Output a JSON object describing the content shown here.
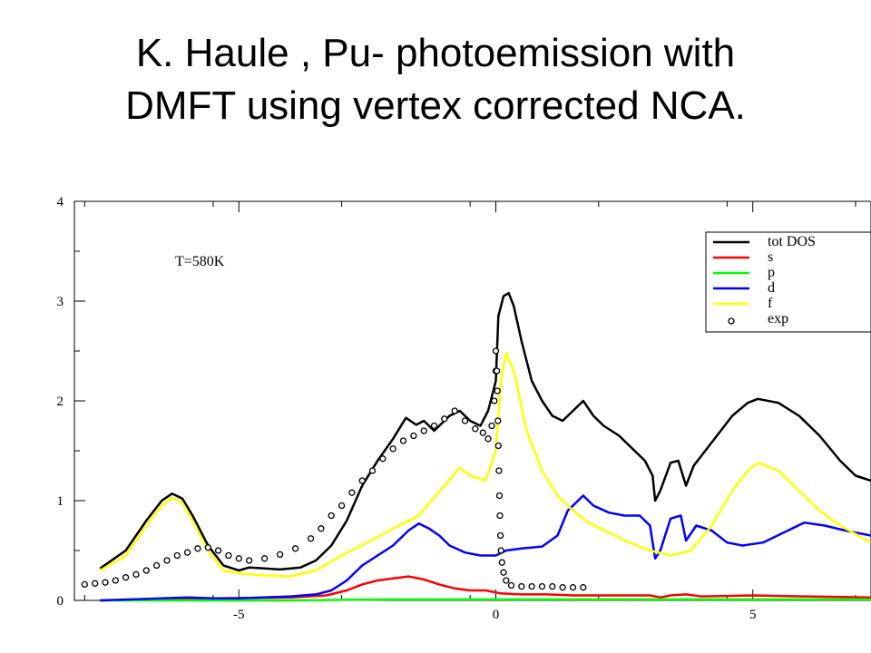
{
  "slide": {
    "title_line1": "K. Haule , Pu- photoemission with",
    "title_line2": "DMFT using vertex corrected NCA."
  },
  "chart_data": {
    "type": "line",
    "title": "",
    "xlabel": "",
    "ylabel": "",
    "xlim": [
      -8.2,
      7.3
    ],
    "ylim": [
      0,
      4
    ],
    "x_ticks": [
      -5,
      0,
      5
    ],
    "y_ticks": [
      0,
      1,
      2,
      3,
      4
    ],
    "grid": false,
    "legend_position": "top-right",
    "annotation": "T=580K",
    "series": [
      {
        "name": "tot DOS",
        "color": "#000000",
        "style": "line",
        "points": [
          [
            -7.7,
            0.32
          ],
          [
            -7.2,
            0.5
          ],
          [
            -6.8,
            0.8
          ],
          [
            -6.5,
            1.0
          ],
          [
            -6.3,
            1.07
          ],
          [
            -6.1,
            1.02
          ],
          [
            -5.9,
            0.85
          ],
          [
            -5.6,
            0.55
          ],
          [
            -5.3,
            0.35
          ],
          [
            -5.0,
            0.3
          ],
          [
            -4.8,
            0.33
          ],
          [
            -4.5,
            0.32
          ],
          [
            -4.2,
            0.31
          ],
          [
            -3.8,
            0.33
          ],
          [
            -3.5,
            0.4
          ],
          [
            -3.2,
            0.55
          ],
          [
            -2.9,
            0.8
          ],
          [
            -2.6,
            1.15
          ],
          [
            -2.3,
            1.4
          ],
          [
            -2.0,
            1.62
          ],
          [
            -1.75,
            1.83
          ],
          [
            -1.55,
            1.76
          ],
          [
            -1.4,
            1.8
          ],
          [
            -1.2,
            1.7
          ],
          [
            -0.9,
            1.85
          ],
          [
            -0.7,
            1.9
          ],
          [
            -0.5,
            1.8
          ],
          [
            -0.3,
            1.75
          ],
          [
            -0.15,
            1.9
          ],
          [
            0.0,
            2.2
          ],
          [
            0.05,
            2.85
          ],
          [
            0.15,
            3.05
          ],
          [
            0.25,
            3.08
          ],
          [
            0.35,
            2.95
          ],
          [
            0.5,
            2.6
          ],
          [
            0.7,
            2.2
          ],
          [
            0.9,
            2.0
          ],
          [
            1.1,
            1.85
          ],
          [
            1.3,
            1.8
          ],
          [
            1.5,
            1.9
          ],
          [
            1.7,
            2.0
          ],
          [
            1.9,
            1.85
          ],
          [
            2.1,
            1.75
          ],
          [
            2.4,
            1.65
          ],
          [
            2.7,
            1.5
          ],
          [
            2.9,
            1.4
          ],
          [
            3.05,
            1.25
          ],
          [
            3.1,
            1.0
          ],
          [
            3.2,
            1.1
          ],
          [
            3.4,
            1.38
          ],
          [
            3.55,
            1.4
          ],
          [
            3.7,
            1.15
          ],
          [
            3.85,
            1.35
          ],
          [
            4.0,
            1.45
          ],
          [
            4.3,
            1.65
          ],
          [
            4.6,
            1.85
          ],
          [
            4.9,
            1.98
          ],
          [
            5.1,
            2.02
          ],
          [
            5.5,
            1.98
          ],
          [
            5.9,
            1.85
          ],
          [
            6.3,
            1.65
          ],
          [
            6.7,
            1.4
          ],
          [
            7.0,
            1.25
          ],
          [
            7.3,
            1.2
          ]
        ]
      },
      {
        "name": "s",
        "color": "#ff0000",
        "style": "line",
        "points": [
          [
            -7.7,
            0.0
          ],
          [
            -6.5,
            0.01
          ],
          [
            -5.5,
            0.02
          ],
          [
            -4.0,
            0.03
          ],
          [
            -3.3,
            0.05
          ],
          [
            -2.9,
            0.1
          ],
          [
            -2.6,
            0.16
          ],
          [
            -2.3,
            0.2
          ],
          [
            -2.0,
            0.22
          ],
          [
            -1.7,
            0.24
          ],
          [
            -1.4,
            0.21
          ],
          [
            -1.1,
            0.16
          ],
          [
            -0.8,
            0.12
          ],
          [
            -0.5,
            0.1
          ],
          [
            -0.2,
            0.1
          ],
          [
            0.1,
            0.07
          ],
          [
            0.5,
            0.06
          ],
          [
            1.0,
            0.06
          ],
          [
            1.5,
            0.05
          ],
          [
            2.0,
            0.05
          ],
          [
            2.5,
            0.05
          ],
          [
            3.0,
            0.05
          ],
          [
            3.2,
            0.03
          ],
          [
            3.4,
            0.05
          ],
          [
            3.7,
            0.06
          ],
          [
            4.0,
            0.04
          ],
          [
            5.0,
            0.05
          ],
          [
            6.0,
            0.04
          ],
          [
            7.3,
            0.03
          ]
        ]
      },
      {
        "name": "p",
        "color": "#00ff00",
        "style": "line",
        "points": [
          [
            -7.7,
            0.0
          ],
          [
            -4.0,
            0.0
          ],
          [
            -2.0,
            0.01
          ],
          [
            0.0,
            0.01
          ],
          [
            2.0,
            0.01
          ],
          [
            5.0,
            0.01
          ],
          [
            7.3,
            0.01
          ]
        ]
      },
      {
        "name": "d",
        "color": "#0000ff",
        "style": "line",
        "points": [
          [
            -7.7,
            0.0
          ],
          [
            -6.5,
            0.02
          ],
          [
            -6.0,
            0.03
          ],
          [
            -5.5,
            0.02
          ],
          [
            -5.0,
            0.02
          ],
          [
            -4.0,
            0.04
          ],
          [
            -3.5,
            0.06
          ],
          [
            -3.2,
            0.1
          ],
          [
            -2.9,
            0.2
          ],
          [
            -2.6,
            0.35
          ],
          [
            -2.3,
            0.45
          ],
          [
            -2.0,
            0.55
          ],
          [
            -1.7,
            0.7
          ],
          [
            -1.5,
            0.77
          ],
          [
            -1.3,
            0.72
          ],
          [
            -1.1,
            0.65
          ],
          [
            -0.9,
            0.55
          ],
          [
            -0.6,
            0.48
          ],
          [
            -0.3,
            0.45
          ],
          [
            0.0,
            0.45
          ],
          [
            0.2,
            0.5
          ],
          [
            0.5,
            0.52
          ],
          [
            0.9,
            0.54
          ],
          [
            1.2,
            0.65
          ],
          [
            1.4,
            0.9
          ],
          [
            1.6,
            1.0
          ],
          [
            1.7,
            1.05
          ],
          [
            1.9,
            0.95
          ],
          [
            2.2,
            0.88
          ],
          [
            2.5,
            0.85
          ],
          [
            2.8,
            0.85
          ],
          [
            3.0,
            0.75
          ],
          [
            3.1,
            0.42
          ],
          [
            3.2,
            0.5
          ],
          [
            3.4,
            0.82
          ],
          [
            3.6,
            0.85
          ],
          [
            3.7,
            0.6
          ],
          [
            3.9,
            0.75
          ],
          [
            4.2,
            0.7
          ],
          [
            4.5,
            0.58
          ],
          [
            4.8,
            0.55
          ],
          [
            5.2,
            0.58
          ],
          [
            5.6,
            0.68
          ],
          [
            6.0,
            0.78
          ],
          [
            6.4,
            0.75
          ],
          [
            6.8,
            0.7
          ],
          [
            7.3,
            0.65
          ]
        ]
      },
      {
        "name": "f",
        "color": "#ffff00",
        "style": "line",
        "points": [
          [
            -7.7,
            0.3
          ],
          [
            -7.2,
            0.45
          ],
          [
            -6.8,
            0.75
          ],
          [
            -6.5,
            0.95
          ],
          [
            -6.3,
            1.03
          ],
          [
            -6.1,
            0.98
          ],
          [
            -5.9,
            0.8
          ],
          [
            -5.6,
            0.5
          ],
          [
            -5.3,
            0.3
          ],
          [
            -5.0,
            0.27
          ],
          [
            -4.5,
            0.25
          ],
          [
            -4.0,
            0.24
          ],
          [
            -3.5,
            0.3
          ],
          [
            -3.0,
            0.45
          ],
          [
            -2.5,
            0.58
          ],
          [
            -2.0,
            0.72
          ],
          [
            -1.5,
            0.85
          ],
          [
            -1.0,
            1.15
          ],
          [
            -0.7,
            1.33
          ],
          [
            -0.5,
            1.25
          ],
          [
            -0.2,
            1.2
          ],
          [
            0.0,
            1.5
          ],
          [
            0.1,
            2.2
          ],
          [
            0.2,
            2.48
          ],
          [
            0.35,
            2.3
          ],
          [
            0.6,
            1.7
          ],
          [
            0.9,
            1.3
          ],
          [
            1.2,
            1.05
          ],
          [
            1.5,
            0.9
          ],
          [
            1.8,
            0.78
          ],
          [
            2.2,
            0.68
          ],
          [
            2.6,
            0.58
          ],
          [
            3.0,
            0.5
          ],
          [
            3.4,
            0.45
          ],
          [
            3.8,
            0.5
          ],
          [
            4.2,
            0.75
          ],
          [
            4.6,
            1.1
          ],
          [
            4.9,
            1.3
          ],
          [
            5.1,
            1.38
          ],
          [
            5.5,
            1.3
          ],
          [
            5.9,
            1.1
          ],
          [
            6.3,
            0.9
          ],
          [
            6.7,
            0.75
          ],
          [
            7.3,
            0.58
          ]
        ]
      },
      {
        "name": "exp",
        "color": "#000000",
        "style": "markers",
        "points": [
          [
            -8.0,
            0.16
          ],
          [
            -7.8,
            0.17
          ],
          [
            -7.6,
            0.18
          ],
          [
            -7.4,
            0.2
          ],
          [
            -7.2,
            0.23
          ],
          [
            -7.0,
            0.26
          ],
          [
            -6.8,
            0.3
          ],
          [
            -6.6,
            0.35
          ],
          [
            -6.4,
            0.4
          ],
          [
            -6.2,
            0.45
          ],
          [
            -6.0,
            0.48
          ],
          [
            -5.8,
            0.52
          ],
          [
            -5.6,
            0.53
          ],
          [
            -5.4,
            0.5
          ],
          [
            -5.2,
            0.45
          ],
          [
            -5.0,
            0.42
          ],
          [
            -4.8,
            0.4
          ],
          [
            -4.5,
            0.42
          ],
          [
            -4.2,
            0.46
          ],
          [
            -3.9,
            0.52
          ],
          [
            -3.6,
            0.62
          ],
          [
            -3.4,
            0.72
          ],
          [
            -3.2,
            0.85
          ],
          [
            -3.0,
            0.95
          ],
          [
            -2.8,
            1.08
          ],
          [
            -2.6,
            1.2
          ],
          [
            -2.4,
            1.3
          ],
          [
            -2.2,
            1.42
          ],
          [
            -2.0,
            1.52
          ],
          [
            -1.8,
            1.6
          ],
          [
            -1.6,
            1.65
          ],
          [
            -1.4,
            1.7
          ],
          [
            -1.2,
            1.75
          ],
          [
            -1.0,
            1.82
          ],
          [
            -0.8,
            1.9
          ],
          [
            -0.6,
            1.8
          ],
          [
            -0.4,
            1.72
          ],
          [
            -0.25,
            1.68
          ],
          [
            -0.15,
            1.62
          ],
          [
            -0.08,
            1.75
          ],
          [
            -0.03,
            2.0
          ],
          [
            0.0,
            2.3
          ],
          [
            0.0,
            2.5
          ],
          [
            0.02,
            2.3
          ],
          [
            0.03,
            2.1
          ],
          [
            0.04,
            1.8
          ],
          [
            0.05,
            1.55
          ],
          [
            0.06,
            1.3
          ],
          [
            0.07,
            1.05
          ],
          [
            0.08,
            0.85
          ],
          [
            0.09,
            0.65
          ],
          [
            0.1,
            0.5
          ],
          [
            0.12,
            0.38
          ],
          [
            0.15,
            0.28
          ],
          [
            0.2,
            0.2
          ],
          [
            0.3,
            0.15
          ],
          [
            0.5,
            0.14
          ],
          [
            0.7,
            0.14
          ],
          [
            0.9,
            0.14
          ],
          [
            1.1,
            0.14
          ],
          [
            1.3,
            0.13
          ],
          [
            1.5,
            0.13
          ],
          [
            1.7,
            0.13
          ]
        ]
      }
    ]
  }
}
